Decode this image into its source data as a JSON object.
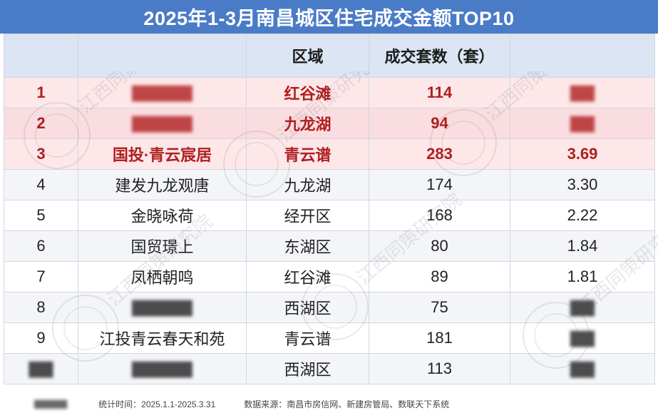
{
  "title": "2025年1-3月南昌城区住宅成交金额TOP10",
  "headers": [
    "",
    "",
    "区域",
    "成交套数（套）",
    ""
  ],
  "chart_data": {
    "type": "table",
    "title": "2025年1-3月南昌城区住宅成交金额TOP10",
    "columns": [
      "",
      "",
      "区域",
      "成交套数（套）",
      ""
    ],
    "rows": [
      {
        "rank": "1",
        "project": "",
        "district": "红谷滩",
        "units": 114,
        "amount": "",
        "highlight": true
      },
      {
        "rank": "2",
        "project": "",
        "district": "九龙湖",
        "units": 94,
        "amount": "",
        "highlight": true
      },
      {
        "rank": "3",
        "project": "国投·青云宸居",
        "district": "青云谱",
        "units": 283,
        "amount": "3.69",
        "highlight": true
      },
      {
        "rank": "4",
        "project": "建发九龙观唐",
        "district": "九龙湖",
        "units": 174,
        "amount": "3.30",
        "highlight": false
      },
      {
        "rank": "5",
        "project": "金晓咏荷",
        "district": "经开区",
        "units": 168,
        "amount": "2.22",
        "highlight": false
      },
      {
        "rank": "6",
        "project": "国贸璟上",
        "district": "东湖区",
        "units": 80,
        "amount": "1.84",
        "highlight": false
      },
      {
        "rank": "7",
        "project": "凤栖朝鸣",
        "district": "红谷滩",
        "units": 89,
        "amount": "1.81",
        "highlight": false
      },
      {
        "rank": "8",
        "project": "",
        "district": "西湖区",
        "units": 75,
        "amount": "",
        "highlight": false
      },
      {
        "rank": "9",
        "project": "江投青云春天和苑",
        "district": "青云谱",
        "units": 181,
        "amount": "",
        "highlight": false
      },
      {
        "rank": "",
        "project": "",
        "district": "西湖区",
        "units": 113,
        "amount": "",
        "highlight": false
      }
    ]
  },
  "footer": {
    "period": "统计时间：2025.1.1-2025.3.31",
    "source": "数据来源：南昌市房信网、新建房管局、数联天下系统"
  },
  "watermark": "江西同策研究院"
}
